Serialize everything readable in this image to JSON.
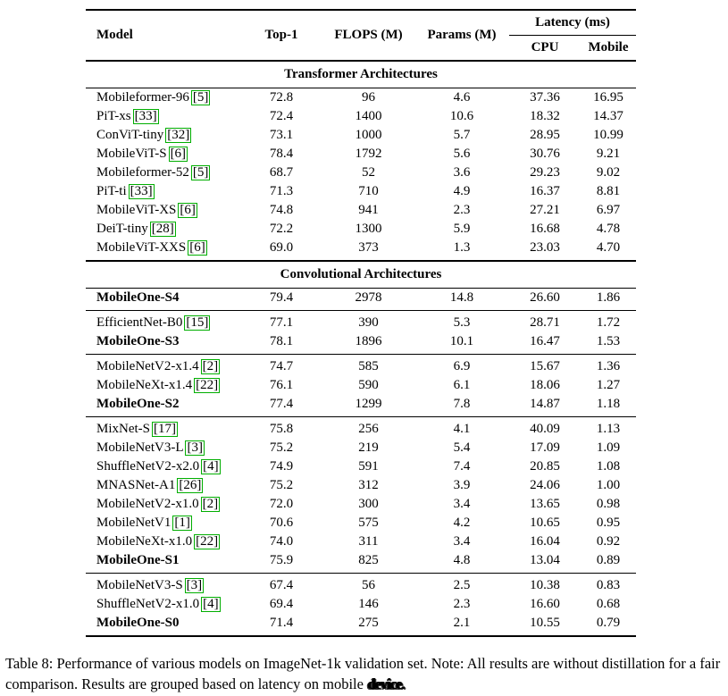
{
  "table": {
    "columns": [
      "Model",
      "Top-1",
      "FLOPS (M)",
      "Params (M)"
    ],
    "latency_group": {
      "label": "Latency (ms)",
      "sub": [
        "CPU",
        "Mobile"
      ]
    },
    "sections": [
      {
        "title": "Transformer Architectures",
        "groups": [
          {
            "rows": [
              {
                "model": "Mobileformer-96",
                "cite": "5",
                "bold": false,
                "top1": "72.8",
                "flops": "96",
                "params": "4.6",
                "cpu": "37.36",
                "mobile": "16.95"
              },
              {
                "model": "PiT-xs",
                "cite": "33",
                "bold": false,
                "top1": "72.4",
                "flops": "1400",
                "params": "10.6",
                "cpu": "18.32",
                "mobile": "14.37"
              },
              {
                "model": "ConViT-tiny",
                "cite": "32",
                "bold": false,
                "top1": "73.1",
                "flops": "1000",
                "params": "5.7",
                "cpu": "28.95",
                "mobile": "10.99"
              },
              {
                "model": "MobileViT-S",
                "cite": "6",
                "bold": false,
                "top1": "78.4",
                "flops": "1792",
                "params": "5.6",
                "cpu": "30.76",
                "mobile": "9.21"
              },
              {
                "model": "Mobileformer-52",
                "cite": "5",
                "bold": false,
                "top1": "68.7",
                "flops": "52",
                "params": "3.6",
                "cpu": "29.23",
                "mobile": "9.02"
              },
              {
                "model": "PiT-ti",
                "cite": "33",
                "bold": false,
                "top1": "71.3",
                "flops": "710",
                "params": "4.9",
                "cpu": "16.37",
                "mobile": "8.81"
              },
              {
                "model": "MobileViT-XS",
                "cite": "6",
                "bold": false,
                "top1": "74.8",
                "flops": "941",
                "params": "2.3",
                "cpu": "27.21",
                "mobile": "6.97"
              },
              {
                "model": "DeiT-tiny",
                "cite": "28",
                "bold": false,
                "top1": "72.2",
                "flops": "1300",
                "params": "5.9",
                "cpu": "16.68",
                "mobile": "4.78"
              },
              {
                "model": "MobileViT-XXS",
                "cite": "6",
                "bold": false,
                "top1": "69.0",
                "flops": "373",
                "params": "1.3",
                "cpu": "23.03",
                "mobile": "4.70"
              }
            ]
          }
        ]
      },
      {
        "title": "Convolutional Architectures",
        "groups": [
          {
            "rows": [
              {
                "model": "MobileOne-S4",
                "cite": "",
                "bold": true,
                "top1": "79.4",
                "flops": "2978",
                "params": "14.8",
                "cpu": "26.60",
                "mobile": "1.86"
              }
            ]
          },
          {
            "rows": [
              {
                "model": "EfficientNet-B0",
                "cite": "15",
                "bold": false,
                "top1": "77.1",
                "flops": "390",
                "params": "5.3",
                "cpu": "28.71",
                "mobile": "1.72"
              },
              {
                "model": "MobileOne-S3",
                "cite": "",
                "bold": true,
                "top1": "78.1",
                "flops": "1896",
                "params": "10.1",
                "cpu": "16.47",
                "mobile": "1.53"
              }
            ]
          },
          {
            "rows": [
              {
                "model": "MobileNetV2-x1.4",
                "cite": "2",
                "bold": false,
                "top1": "74.7",
                "flops": "585",
                "params": "6.9",
                "cpu": "15.67",
                "mobile": "1.36"
              },
              {
                "model": "MobileNeXt-x1.4",
                "cite": "22",
                "bold": false,
                "top1": "76.1",
                "flops": "590",
                "params": "6.1",
                "cpu": "18.06",
                "mobile": "1.27"
              },
              {
                "model": "MobileOne-S2",
                "cite": "",
                "bold": true,
                "top1": "77.4",
                "flops": "1299",
                "params": "7.8",
                "cpu": "14.87",
                "mobile": "1.18"
              }
            ]
          },
          {
            "rows": [
              {
                "model": "MixNet-S",
                "cite": "17",
                "bold": false,
                "top1": "75.8",
                "flops": "256",
                "params": "4.1",
                "cpu": "40.09",
                "mobile": "1.13"
              },
              {
                "model": "MobileNetV3-L",
                "cite": "3",
                "bold": false,
                "top1": "75.2",
                "flops": "219",
                "params": "5.4",
                "cpu": "17.09",
                "mobile": "1.09"
              },
              {
                "model": "ShuffleNetV2-x2.0",
                "cite": "4",
                "bold": false,
                "top1": "74.9",
                "flops": "591",
                "params": "7.4",
                "cpu": "20.85",
                "mobile": "1.08"
              },
              {
                "model": "MNASNet-A1",
                "cite": "26",
                "bold": false,
                "top1": "75.2",
                "flops": "312",
                "params": "3.9",
                "cpu": "24.06",
                "mobile": "1.00"
              },
              {
                "model": "MobileNetV2-x1.0",
                "cite": "2",
                "bold": false,
                "top1": "72.0",
                "flops": "300",
                "params": "3.4",
                "cpu": "13.65",
                "mobile": "0.98"
              },
              {
                "model": "MobileNetV1",
                "cite": "1",
                "bold": false,
                "top1": "70.6",
                "flops": "575",
                "params": "4.2",
                "cpu": "10.65",
                "mobile": "0.95"
              },
              {
                "model": "MobileNeXt-x1.0",
                "cite": "22",
                "bold": false,
                "top1": "74.0",
                "flops": "311",
                "params": "3.4",
                "cpu": "16.04",
                "mobile": "0.92"
              },
              {
                "model": "MobileOne-S1",
                "cite": "",
                "bold": true,
                "top1": "75.9",
                "flops": "825",
                "params": "4.8",
                "cpu": "13.04",
                "mobile": "0.89"
              }
            ]
          },
          {
            "rows": [
              {
                "model": "MobileNetV3-S",
                "cite": "3",
                "bold": false,
                "top1": "67.4",
                "flops": "56",
                "params": "2.5",
                "cpu": "10.38",
                "mobile": "0.83"
              },
              {
                "model": "ShuffleNetV2-x1.0",
                "cite": "4",
                "bold": false,
                "top1": "69.4",
                "flops": "146",
                "params": "2.3",
                "cpu": "16.60",
                "mobile": "0.68"
              },
              {
                "model": "MobileOne-S0",
                "cite": "",
                "bold": true,
                "top1": "71.4",
                "flops": "275",
                "params": "2.1",
                "cpu": "10.55",
                "mobile": "0.79"
              }
            ]
          }
        ]
      }
    ]
  },
  "caption": {
    "main": "Table 8: Performance of various models on ImageNet-1k validation set. Note: All results are without distillation for a fair comparison. Results are grouped based on latency on mobile ",
    "artifact": "device."
  },
  "colors": {
    "citation_box": "#00ae00"
  }
}
